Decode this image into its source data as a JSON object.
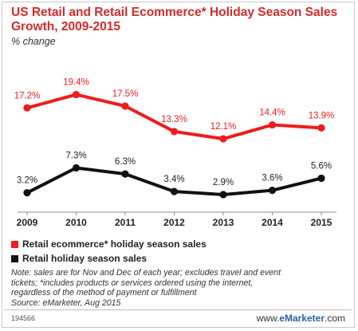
{
  "title": "US Retail and Retail Ecommerce* Holiday Season Sales Growth, 2009-2015",
  "subtitle": "% change",
  "chart_data": {
    "type": "line",
    "title": "US Retail and Retail Ecommerce* Holiday Season Sales Growth, 2009-2015",
    "subtitle": "% change",
    "x": [
      "2009",
      "2010",
      "2011",
      "2012",
      "2013",
      "2014",
      "2015"
    ],
    "series": [
      {
        "name": "Retail ecommerce* holiday season sales",
        "values": [
          17.2,
          19.4,
          17.5,
          13.3,
          12.1,
          14.4,
          13.9
        ],
        "color": "#ee1c1c"
      },
      {
        "name": "Retail holiday season sales",
        "values": [
          3.2,
          7.3,
          6.3,
          3.4,
          2.9,
          3.6,
          5.6
        ],
        "color": "#111111"
      }
    ],
    "ylim": [
      0,
      22
    ],
    "grid": false,
    "legend_position": "bottom-left"
  },
  "legend": {
    "items": [
      {
        "label": "Retail ecommerce* holiday season sales",
        "color": "#ee1c1c"
      },
      {
        "label": "Retail holiday season sales",
        "color": "#111111"
      }
    ]
  },
  "note": {
    "line1": "Note: sales are for Nov and Dec of each year; excludes travel and event",
    "line2": "tickets; *includes products or services ordered using the internet,",
    "line3": "regardless of the method of payment or fulfillment",
    "line4": "Source: eMarketer, Aug 2015"
  },
  "footer": {
    "chart_id": "194566",
    "brand_prefix": "www.",
    "brand_name": "eMarketer",
    "brand_suffix": ".com"
  }
}
